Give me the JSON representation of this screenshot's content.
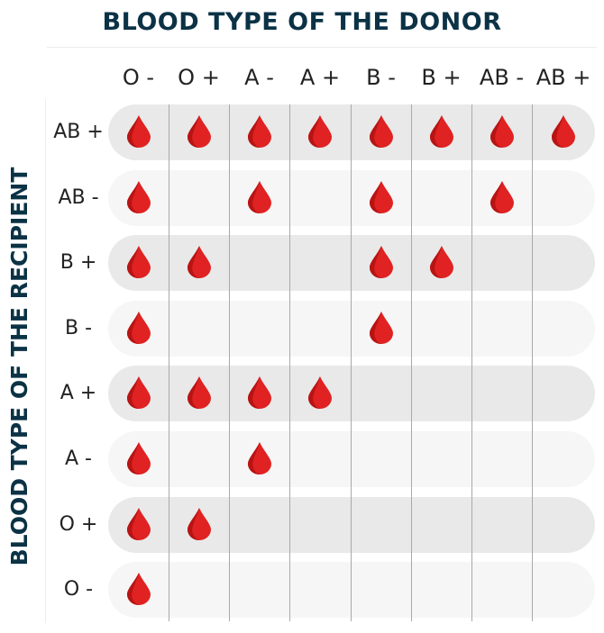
{
  "header": {
    "title": "BLOOD TYPE OF THE DONOR"
  },
  "side": {
    "title": "BLOOD TYPE OF THE RECIPIENT"
  },
  "donors": [
    "O -",
    "O +",
    "A -",
    "A +",
    "B -",
    "B +",
    "AB -",
    "AB +"
  ],
  "recipients": [
    "AB +",
    "AB -",
    "B +",
    "B -",
    "A +",
    "A -",
    "O +",
    "O -"
  ],
  "compatibility": [
    [
      1,
      1,
      1,
      1,
      1,
      1,
      1,
      1
    ],
    [
      1,
      0,
      1,
      0,
      1,
      0,
      1,
      0
    ],
    [
      1,
      1,
      0,
      0,
      1,
      1,
      0,
      0
    ],
    [
      1,
      0,
      0,
      0,
      1,
      0,
      0,
      0
    ],
    [
      1,
      1,
      1,
      1,
      0,
      0,
      0,
      0
    ],
    [
      1,
      0,
      1,
      0,
      0,
      0,
      0,
      0
    ],
    [
      1,
      1,
      0,
      0,
      0,
      0,
      0,
      0
    ],
    [
      1,
      0,
      0,
      0,
      0,
      0,
      0,
      0
    ]
  ],
  "colors": {
    "drop": "#e02222",
    "drop_shade": "#b71414",
    "title": "#0b3245"
  },
  "icons": {
    "compatible": "blood-drop-icon"
  }
}
